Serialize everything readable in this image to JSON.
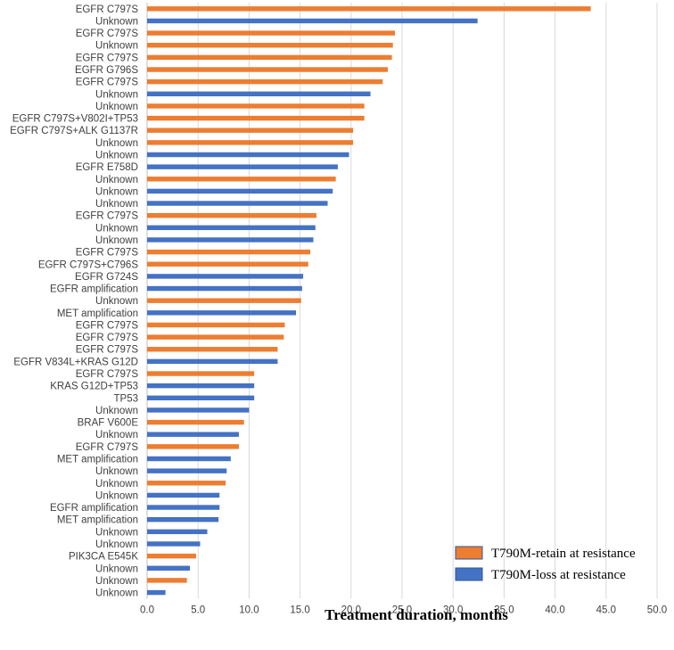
{
  "chart_data": {
    "type": "bar",
    "orientation": "horizontal",
    "title": "",
    "xlabel": "Treatment duration, months",
    "ylabel": "",
    "xlim": [
      0,
      50
    ],
    "xticks": [
      "0.0",
      "5.0",
      "10.0",
      "15.0",
      "20.0",
      "25.0",
      "30.0",
      "35.0",
      "40.0",
      "45.0",
      "50.0"
    ],
    "grid": "vertical",
    "legend_position": "bottom-right",
    "colors": {
      "retain": "#ED7D31",
      "loss": "#4472C4"
    },
    "legend": [
      {
        "key": "retain",
        "name": "T790M-retain at resistance"
      },
      {
        "key": "loss",
        "name": "T790M-loss at resistance"
      }
    ],
    "bars": [
      {
        "label": "EGFR C797S",
        "value": 43.5,
        "group": "retain"
      },
      {
        "label": "Unknown",
        "value": 32.4,
        "group": "loss"
      },
      {
        "label": "EGFR C797S",
        "value": 24.3,
        "group": "retain"
      },
      {
        "label": "Unknown",
        "value": 24.1,
        "group": "retain"
      },
      {
        "label": "EGFR C797S",
        "value": 24.0,
        "group": "retain"
      },
      {
        "label": "EGFR G796S",
        "value": 23.6,
        "group": "retain"
      },
      {
        "label": "EGFR C797S",
        "value": 23.1,
        "group": "retain"
      },
      {
        "label": "Unknown",
        "value": 21.9,
        "group": "loss"
      },
      {
        "label": "Unknown",
        "value": 21.3,
        "group": "retain"
      },
      {
        "label": "EGFR C797S+V802I+TP53",
        "value": 21.3,
        "group": "retain"
      },
      {
        "label": "EGFR C797S+ALK G1137R",
        "value": 20.2,
        "group": "retain"
      },
      {
        "label": "Unknown",
        "value": 20.2,
        "group": "retain"
      },
      {
        "label": "Unknown",
        "value": 19.8,
        "group": "loss"
      },
      {
        "label": "EGFR E758D",
        "value": 18.7,
        "group": "loss"
      },
      {
        "label": "Unknown",
        "value": 18.5,
        "group": "retain"
      },
      {
        "label": "Unknown",
        "value": 18.2,
        "group": "loss"
      },
      {
        "label": "Unknown",
        "value": 17.7,
        "group": "loss"
      },
      {
        "label": "EGFR C797S",
        "value": 16.6,
        "group": "retain"
      },
      {
        "label": "Unknown",
        "value": 16.5,
        "group": "loss"
      },
      {
        "label": "Unknown",
        "value": 16.3,
        "group": "loss"
      },
      {
        "label": "EGFR C797S",
        "value": 16.0,
        "group": "retain"
      },
      {
        "label": "EGFR C797S+C796S",
        "value": 15.8,
        "group": "retain"
      },
      {
        "label": "EGFR G724S",
        "value": 15.3,
        "group": "loss"
      },
      {
        "label": "EGFR amplification",
        "value": 15.2,
        "group": "loss"
      },
      {
        "label": "Unknown",
        "value": 15.1,
        "group": "retain"
      },
      {
        "label": "MET amplification",
        "value": 14.6,
        "group": "loss"
      },
      {
        "label": "EGFR C797S",
        "value": 13.5,
        "group": "retain"
      },
      {
        "label": "EGFR C797S",
        "value": 13.4,
        "group": "retain"
      },
      {
        "label": "EGFR C797S",
        "value": 12.8,
        "group": "retain"
      },
      {
        "label": "EGFR V834L+KRAS G12D",
        "value": 12.8,
        "group": "loss"
      },
      {
        "label": "EGFR C797S",
        "value": 10.5,
        "group": "retain"
      },
      {
        "label": "KRAS G12D+TP53",
        "value": 10.5,
        "group": "loss"
      },
      {
        "label": "TP53",
        "value": 10.5,
        "group": "loss"
      },
      {
        "label": "Unknown",
        "value": 10.0,
        "group": "loss"
      },
      {
        "label": "BRAF V600E",
        "value": 9.5,
        "group": "retain"
      },
      {
        "label": "Unknown",
        "value": 9.0,
        "group": "loss"
      },
      {
        "label": "EGFR C797S",
        "value": 9.0,
        "group": "retain"
      },
      {
        "label": "MET amplification",
        "value": 8.2,
        "group": "loss"
      },
      {
        "label": "Unknown",
        "value": 7.8,
        "group": "loss"
      },
      {
        "label": "Unknown",
        "value": 7.7,
        "group": "retain"
      },
      {
        "label": "Unknown",
        "value": 7.1,
        "group": "loss"
      },
      {
        "label": "EGFR amplification",
        "value": 7.1,
        "group": "loss"
      },
      {
        "label": "MET amplification",
        "value": 7.0,
        "group": "loss"
      },
      {
        "label": "Unknown",
        "value": 5.9,
        "group": "loss"
      },
      {
        "label": "Unknown",
        "value": 5.2,
        "group": "loss"
      },
      {
        "label": "PIK3CA E545K",
        "value": 4.8,
        "group": "retain"
      },
      {
        "label": "Unknown",
        "value": 4.2,
        "group": "loss"
      },
      {
        "label": "Unknown",
        "value": 3.9,
        "group": "retain"
      },
      {
        "label": "Unknown",
        "value": 1.8,
        "group": "loss"
      }
    ]
  }
}
